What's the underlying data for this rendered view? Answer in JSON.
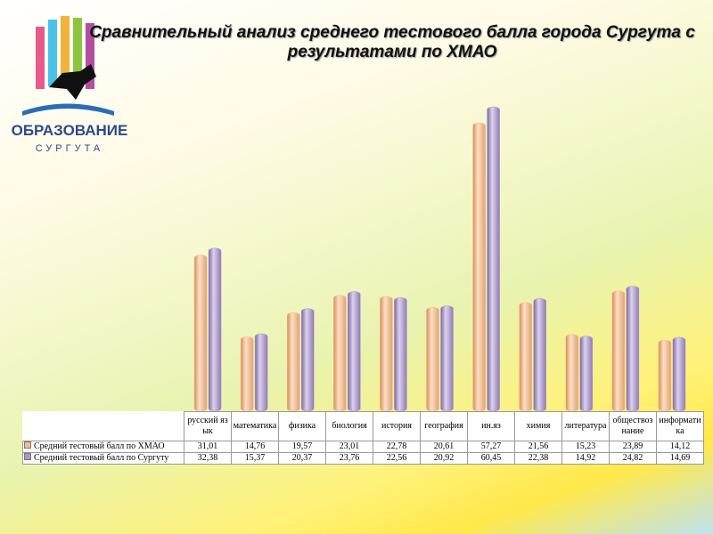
{
  "logo": {
    "title": "ОБРАЗОВАНИЕ",
    "subtitle": "СУРГУТА"
  },
  "chart_data": {
    "type": "bar",
    "title": "Сравнительный анализ среднего тестового балла города Сургута с результатами по ХМАО",
    "categories": [
      "русский язык",
      "математика",
      "физика",
      "биология",
      "история",
      "география",
      "ин.яз",
      "химия",
      "литература",
      "обществознание",
      "информатика"
    ],
    "series": [
      {
        "name": "Средний тестовый балл по ХМАО",
        "color": "#f5b98c",
        "values": [
          31.01,
          14.76,
          19.57,
          23.01,
          22.78,
          20.61,
          57.27,
          21.56,
          15.23,
          23.89,
          14.12
        ],
        "value_labels": [
          "31,01",
          "14,76",
          "19,57",
          "23,01",
          "22,78",
          "20,61",
          "57,27",
          "21,56",
          "15,23",
          "23,89",
          "14,12"
        ]
      },
      {
        "name": "Средний тестовый балл по Сургуту",
        "color": "#ab97c9",
        "values": [
          32.38,
          15.37,
          20.37,
          23.76,
          22.56,
          20.92,
          60.45,
          22.38,
          14.92,
          24.82,
          14.69
        ],
        "value_labels": [
          "32,38",
          "15,37",
          "20,37",
          "23,76",
          "22,56",
          "20,92",
          "60,45",
          "22,38",
          "14,92",
          "24,82",
          "14,69"
        ]
      }
    ]
  }
}
